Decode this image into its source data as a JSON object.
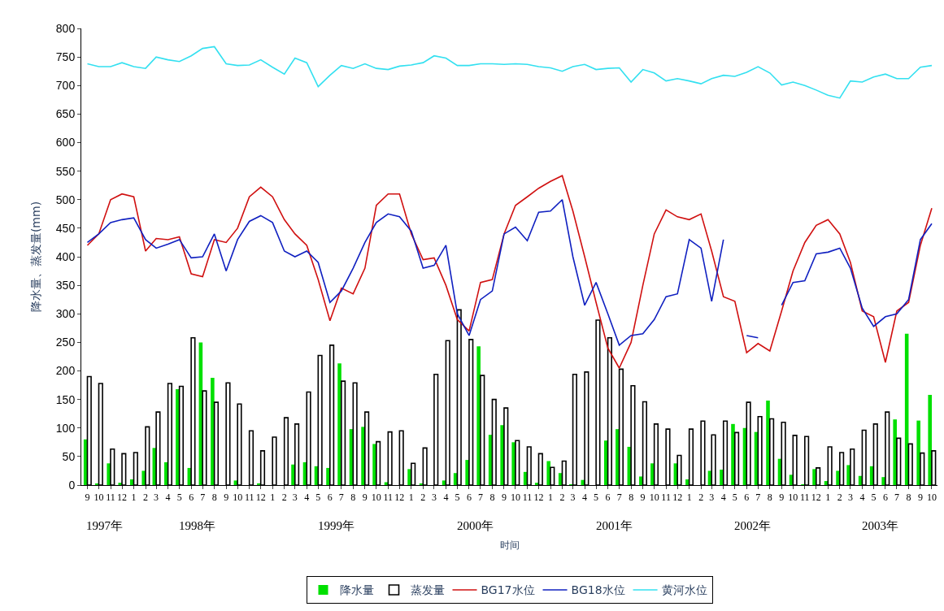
{
  "chart_data": {
    "type": "bar",
    "xlabel": "时间",
    "ylabel": "降水量、蒸发量(mm)",
    "x": [
      "1997-09",
      "1997-10",
      "1997-11",
      "1997-12",
      "1998-01",
      "1998-02",
      "1998-03",
      "1998-04",
      "1998-05",
      "1998-06",
      "1998-07",
      "1998-08",
      "1998-09",
      "1998-10",
      "1998-11",
      "1998-12",
      "1999-01",
      "1999-02",
      "1999-03",
      "1999-04",
      "1999-05",
      "1999-06",
      "1999-07",
      "1999-08",
      "1999-09",
      "1999-10",
      "1999-11",
      "1999-12",
      "2000-01",
      "2000-02",
      "2000-03",
      "2000-04",
      "2000-05",
      "2000-06",
      "2000-07",
      "2000-08",
      "2000-09",
      "2000-10",
      "2000-11",
      "2000-12",
      "2001-01",
      "2001-02",
      "2001-03",
      "2001-04",
      "2001-05",
      "2001-06",
      "2001-07",
      "2001-08",
      "2001-09",
      "2001-10",
      "2001-11",
      "2001-12",
      "2002-01",
      "2002-02",
      "2002-03",
      "2002-04",
      "2002-05",
      "2002-06",
      "2002-07",
      "2002-08",
      "2002-09",
      "2002-10",
      "2002-11",
      "2002-12",
      "2003-01",
      "2003-02",
      "2003-03",
      "2003-04",
      "2003-05",
      "2003-06",
      "2003-07",
      "2003-08",
      "2003-09",
      "2003-10"
    ],
    "series": [
      {
        "name": "降水量",
        "color": "#00e000",
        "values": [
          80,
          2,
          38,
          4,
          10,
          25,
          65,
          40,
          168,
          30,
          250,
          188,
          0,
          8,
          0,
          3,
          0,
          0,
          36,
          40,
          33,
          30,
          213,
          98,
          102,
          72,
          5,
          0,
          28,
          2,
          0,
          8,
          21,
          44,
          243,
          88,
          105,
          75,
          23,
          4,
          42,
          21,
          1,
          9,
          0,
          78,
          98,
          67,
          15,
          38,
          0,
          38,
          10,
          0,
          25,
          27,
          107,
          100,
          93,
          148,
          46,
          18,
          1,
          28,
          7,
          25,
          35,
          16,
          33,
          14,
          115,
          265,
          113,
          158
        ]
      },
      {
        "name": "蒸发量",
        "color": "#000000",
        "values": [
          190,
          178,
          63,
          55,
          57,
          102,
          128,
          178,
          173,
          258,
          165,
          145,
          179,
          142,
          95,
          60,
          84,
          118,
          107,
          163,
          227,
          245,
          182,
          179,
          128,
          76,
          93,
          95,
          38,
          65,
          194,
          253,
          307,
          255,
          192,
          150,
          135,
          78,
          67,
          55,
          31,
          42,
          194,
          198,
          289,
          258,
          203,
          174,
          146,
          107,
          98,
          52,
          98,
          112,
          88,
          112,
          92,
          145,
          120,
          116,
          110,
          87,
          85,
          30,
          67,
          57,
          63,
          96,
          107,
          128,
          82,
          72,
          56,
          60
        ]
      },
      {
        "name": "BG17水位",
        "type": "line",
        "color": "#d01010",
        "values": [
          420,
          440,
          500,
          510,
          505,
          410,
          432,
          430,
          435,
          370,
          365,
          430,
          425,
          450,
          505,
          522,
          505,
          465,
          440,
          420,
          360,
          288,
          345,
          335,
          380,
          490,
          510,
          510,
          440,
          395,
          398,
          350,
          290,
          270,
          355,
          360,
          440,
          490,
          505,
          520,
          532,
          542,
          480,
          400,
          320,
          240,
          205,
          250,
          350,
          440,
          482,
          470,
          465,
          475,
          410,
          330,
          322,
          232,
          248,
          235,
          305,
          375,
          425,
          455,
          465,
          440,
          390,
          305,
          295,
          215,
          305,
          320,
          420,
          485
        ]
      },
      {
        "name": "BG18水位",
        "type": "line",
        "color": "#1020c0",
        "values": [
          425,
          440,
          460,
          465,
          468,
          430,
          415,
          422,
          430,
          398,
          400,
          440,
          375,
          430,
          462,
          472,
          460,
          410,
          400,
          410,
          390,
          320,
          340,
          380,
          425,
          460,
          475,
          470,
          445,
          380,
          385,
          420,
          300,
          262,
          325,
          340,
          440,
          452,
          428,
          478,
          480,
          500,
          400,
          315,
          355,
          300,
          245,
          262,
          265,
          290,
          330,
          335,
          430,
          415,
          322,
          430,
          null,
          262,
          258,
          null,
          315,
          355,
          358,
          405,
          408,
          415,
          380,
          310,
          278,
          295,
          300,
          325,
          430,
          458
        ]
      },
      {
        "name": "黄河水位",
        "type": "line",
        "color": "#33e0f0",
        "values": [
          738,
          733,
          733,
          740,
          733,
          730,
          750,
          745,
          742,
          752,
          765,
          768,
          738,
          735,
          736,
          745,
          732,
          720,
          748,
          740,
          698,
          718,
          735,
          730,
          738,
          730,
          728,
          734,
          736,
          740,
          752,
          748,
          735,
          735,
          738,
          738,
          737,
          738,
          737,
          733,
          731,
          725,
          733,
          737,
          728,
          730,
          731,
          706,
          728,
          722,
          708,
          712,
          708,
          703,
          712,
          718,
          716,
          723,
          733,
          722,
          701,
          706,
          700,
          692,
          683,
          678,
          708,
          706,
          715,
          720,
          712,
          712,
          732,
          735
        ]
      }
    ],
    "xlim": [
      "1997-08-16",
      "2003-10-16"
    ],
    "xticks": [
      {
        "value": "1997-09",
        "label": "9"
      },
      {
        "value": "1997-10",
        "label": "10"
      },
      {
        "value": "1997-11",
        "label": "11"
      },
      {
        "value": "1997-12",
        "label": "12"
      },
      {
        "value": "1998-01",
        "label": "1"
      },
      {
        "value": "1998-02",
        "label": "2"
      },
      {
        "value": "1998-03",
        "label": "3"
      },
      {
        "value": "1998-04",
        "label": "4"
      },
      {
        "value": "1998-05",
        "label": "5"
      },
      {
        "value": "1998-06",
        "label": "6"
      },
      {
        "value": "1998-07",
        "label": "7"
      },
      {
        "value": "1998-08",
        "label": "8"
      },
      {
        "value": "1998-09",
        "label": "9"
      },
      {
        "value": "1998-10",
        "label": "10"
      },
      {
        "value": "1998-11",
        "label": "11"
      },
      {
        "value": "1998-12",
        "label": "12"
      },
      {
        "value": "1999-01",
        "label": "1"
      },
      {
        "value": "1999-02",
        "label": "2"
      },
      {
        "value": "1999-03",
        "label": "3"
      },
      {
        "value": "1999-04",
        "label": "4"
      },
      {
        "value": "1999-05",
        "label": "5"
      },
      {
        "value": "1999-06",
        "label": "6"
      },
      {
        "value": "1999-07",
        "label": "7"
      },
      {
        "value": "1999-08",
        "label": "8"
      },
      {
        "value": "1999-09",
        "label": "9"
      },
      {
        "value": "1999-10",
        "label": "10"
      },
      {
        "value": "1999-11",
        "label": "11"
      },
      {
        "value": "1999-12",
        "label": "12"
      },
      {
        "value": "2000-01",
        "label": "1"
      },
      {
        "value": "2000-02",
        "label": "2"
      },
      {
        "value": "2000-03",
        "label": "3"
      },
      {
        "value": "2000-04",
        "label": "4"
      },
      {
        "value": "2000-05",
        "label": "5"
      },
      {
        "value": "2000-06",
        "label": "6"
      },
      {
        "value": "2000-07",
        "label": "7"
      },
      {
        "value": "2000-08",
        "label": "8"
      },
      {
        "value": "2000-09",
        "label": "9"
      },
      {
        "value": "2000-10",
        "label": "10"
      },
      {
        "value": "2000-11",
        "label": "11"
      },
      {
        "value": "2000-12",
        "label": "12"
      },
      {
        "value": "2001-01",
        "label": "1"
      },
      {
        "value": "2001-02",
        "label": "2"
      },
      {
        "value": "2001-03",
        "label": "3"
      },
      {
        "value": "2001-04",
        "label": "4"
      },
      {
        "value": "2001-05",
        "label": "5"
      },
      {
        "value": "2001-06",
        "label": "6"
      },
      {
        "value": "2001-07",
        "label": "7"
      },
      {
        "value": "2001-08",
        "label": "8"
      },
      {
        "value": "2001-09",
        "label": "9"
      },
      {
        "value": "2001-10",
        "label": "10"
      },
      {
        "value": "2001-11",
        "label": "11"
      },
      {
        "value": "2001-12",
        "label": "12"
      },
      {
        "value": "2002-01",
        "label": "1"
      },
      {
        "value": "2002-02",
        "label": "2"
      },
      {
        "value": "2002-03",
        "label": "3"
      },
      {
        "value": "2002-04",
        "label": "4"
      },
      {
        "value": "2002-05",
        "label": "5"
      },
      {
        "value": "2002-06",
        "label": "6"
      },
      {
        "value": "2002-07",
        "label": "7"
      },
      {
        "value": "2002-08",
        "label": "8"
      },
      {
        "value": "2002-09",
        "label": "9"
      },
      {
        "value": "2002-10",
        "label": "10"
      },
      {
        "value": "2002-11",
        "label": "11"
      },
      {
        "value": "2002-12",
        "label": "12"
      },
      {
        "value": "2003-01",
        "label": "1"
      },
      {
        "value": "2003-02",
        "label": "2"
      },
      {
        "value": "2003-03",
        "label": "3"
      },
      {
        "value": "2003-04",
        "label": "4"
      },
      {
        "value": "2003-05",
        "label": "5"
      },
      {
        "value": "2003-06",
        "label": "6"
      },
      {
        "value": "2003-07",
        "label": "7"
      },
      {
        "value": "2003-08",
        "label": "8"
      },
      {
        "value": "2003-09",
        "label": "9"
      },
      {
        "value": "2003-10",
        "label": "10"
      }
    ],
    "ylim": [
      0,
      800
    ],
    "yticks": [
      0,
      50,
      100,
      150,
      200,
      250,
      300,
      350,
      400,
      450,
      500,
      550,
      600,
      650,
      700,
      750,
      800
    ],
    "annotations": [
      "1997年",
      "1998年",
      "1999年",
      "2000年",
      "2001年",
      "2002年",
      "2003年"
    ],
    "legend": "bottom",
    "marker": "none",
    "line_style": "solid"
  }
}
